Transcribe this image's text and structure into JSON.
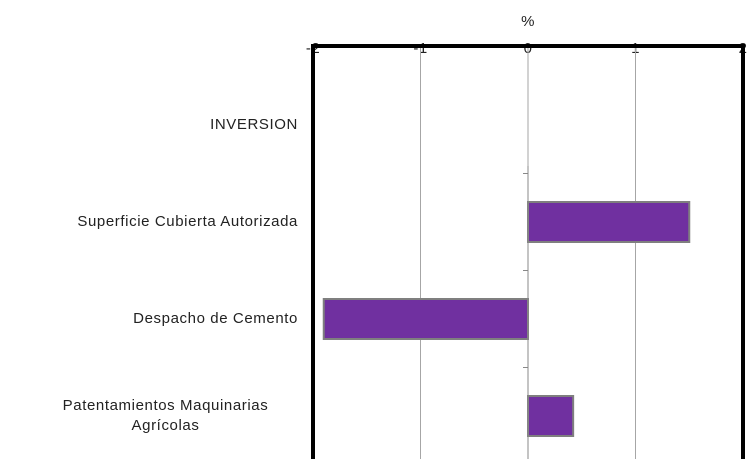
{
  "chart_data": {
    "type": "bar",
    "orientation": "horizontal",
    "x_label": "%",
    "categories": [
      "INVERSION",
      "Superficie Cubierta Autorizada",
      "Despacho de Cemento",
      "Patentamientos Maquinarias Agrícolas"
    ],
    "values": [
      null,
      1.5,
      -1.9,
      0.42
    ],
    "color": "#7030a0",
    "xlim": [
      -2,
      2
    ],
    "xticks": [
      -2,
      -1,
      0,
      1,
      2
    ],
    "grid": true
  }
}
